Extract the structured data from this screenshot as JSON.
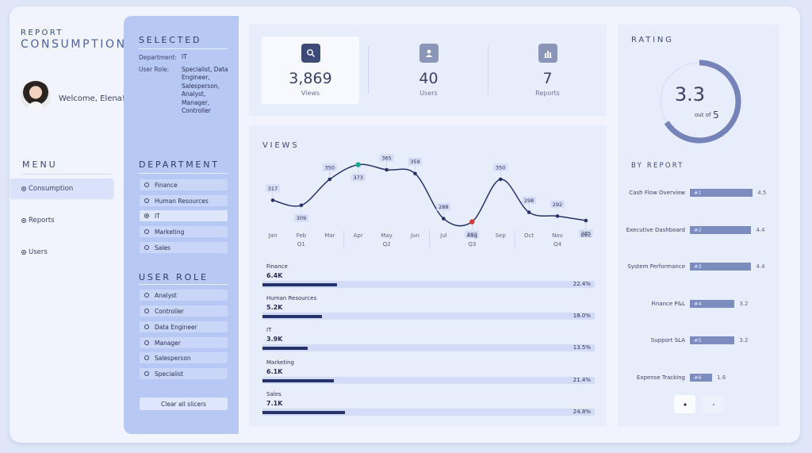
{
  "brand": {
    "top": "REPORT",
    "bottom": "CONSUMPTION"
  },
  "user": {
    "welcome": "Welcome, Elena!"
  },
  "menu": {
    "title": "MENU",
    "items": [
      {
        "label": "Consumption",
        "active": true
      },
      {
        "label": "Reports",
        "active": false
      },
      {
        "label": "Users",
        "active": false
      }
    ]
  },
  "selected": {
    "title": "SELECTED",
    "department_key": "Department:",
    "department_value": "IT",
    "role_key": "User Role:",
    "role_value": "Specialist, Data Engineer, Salesperson, Analyst, Manager, Controller"
  },
  "department": {
    "title": "DEPARTMENT",
    "options": [
      "Finance",
      "Human Resources",
      "IT",
      "Marketing",
      "Sales"
    ],
    "selected": "IT"
  },
  "user_role": {
    "title": "USER ROLE",
    "options": [
      "Analyst",
      "Controller",
      "Data Engineer",
      "Manager",
      "Salesperson",
      "Specialist"
    ]
  },
  "clear_button": "Clear all slicers",
  "kpis": [
    {
      "value": "3,869",
      "label": "Views",
      "icon": "search-icon"
    },
    {
      "value": "40",
      "label": "Users",
      "icon": "user-icon"
    },
    {
      "value": "7",
      "label": "Reports",
      "icon": "bar-chart-icon"
    }
  ],
  "views_title": "VIEWS",
  "chart_data": {
    "type": "line",
    "title": "VIEWS",
    "categories": [
      "Jan",
      "Feb",
      "Mar",
      "Apr",
      "May",
      "Jun",
      "Jul",
      "Aug",
      "Sep",
      "Oct",
      "Nov",
      "Dec"
    ],
    "quarters": [
      "Q1",
      "Q2",
      "Q3",
      "Q4"
    ],
    "values": [
      317,
      309,
      350,
      373,
      365,
      359,
      288,
      283,
      350,
      298,
      292,
      285
    ],
    "max_index": 3,
    "min_index": 7,
    "ylim": [
      270,
      380
    ],
    "max_color": "#1fa88a",
    "min_color": "#d33b3b",
    "line_color": "#27326a"
  },
  "dept_bars": [
    {
      "name": "Finance",
      "value": "6.4K",
      "pct": "22.4%",
      "frac": 0.224
    },
    {
      "name": "Human Resources",
      "value": "5.2K",
      "pct": "18.0%",
      "frac": 0.18
    },
    {
      "name": "IT",
      "value": "3.9K",
      "pct": "13.5%",
      "frac": 0.135
    },
    {
      "name": "Marketing",
      "value": "6.1K",
      "pct": "21.4%",
      "frac": 0.214
    },
    {
      "name": "Sales",
      "value": "7.1K",
      "pct": "24.8%",
      "frac": 0.248
    }
  ],
  "rating": {
    "title": "RATING",
    "value": "3.3",
    "out_of_label": "out of",
    "out_of": "5",
    "frac": 0.66,
    "ring_color": "#7583b8"
  },
  "by_report": {
    "title": "BY REPORT",
    "max": 5,
    "items": [
      {
        "name": "Cash Flow Overview",
        "rank": "#1",
        "score": "4.5",
        "value": 4.5
      },
      {
        "name": "Executive Dashboard",
        "rank": "#2",
        "score": "4.4",
        "value": 4.4
      },
      {
        "name": "System Performance",
        "rank": "#3",
        "score": "4.4",
        "value": 4.4
      },
      {
        "name": "Finance P&L",
        "rank": "#4",
        "score": "3.2",
        "value": 3.2
      },
      {
        "name": "Support SLA",
        "rank": "#5",
        "score": "3.2",
        "value": 3.2
      },
      {
        "name": "Expense Tracking",
        "rank": "#6",
        "score": "1.6",
        "value": 1.6
      }
    ]
  }
}
